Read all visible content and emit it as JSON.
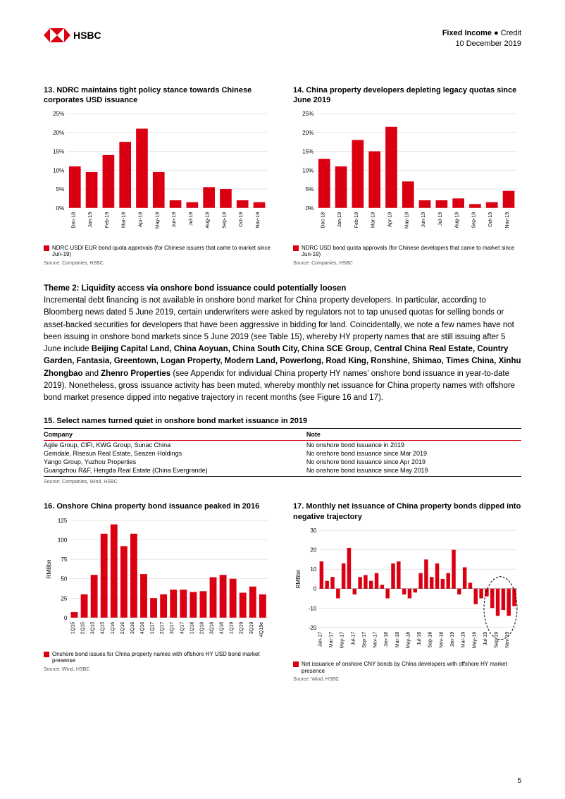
{
  "header": {
    "logo_text": "HSBC",
    "category_bold": "Fixed Income",
    "category_light": "Credit",
    "date": "10 December 2019"
  },
  "chart13": {
    "title": "13. NDRC maintains tight policy stance towards Chinese corporates USD issuance",
    "type": "bar",
    "categories": [
      "Dec-18",
      "Jan-19",
      "Feb-19",
      "Mar-19",
      "Apr-19",
      "May-19",
      "Jun-19",
      "Jul-19",
      "Aug-19",
      "Sep-19",
      "Oct-19",
      "Nov-19"
    ],
    "values": [
      11,
      9.5,
      14,
      17.5,
      21,
      9.5,
      2,
      1.5,
      5.5,
      5,
      2,
      1.5
    ],
    "ylim": [
      0,
      25
    ],
    "ytick_step": 5,
    "y_suffix": "%",
    "bar_color": "#db0011",
    "grid_color": "#cccccc",
    "background_color": "#ffffff",
    "legend": "NDRC USD/ EUR bond quota approvals (for Chinese issuers that came to market since Jun-19)",
    "source": "Source: Companies, HSBC"
  },
  "chart14": {
    "title": "14. China property developers depleting legacy quotas since June 2019",
    "type": "bar",
    "categories": [
      "Dec-18",
      "Jan-19",
      "Feb-19",
      "Mar-19",
      "Apr-19",
      "May-19",
      "Jun-19",
      "Jul-19",
      "Aug-19",
      "Sep-19",
      "Oct-19",
      "Nov-19"
    ],
    "values": [
      13,
      11,
      18,
      15,
      21.5,
      7,
      2,
      2,
      2.5,
      1,
      1.5,
      4.5
    ],
    "ylim": [
      0,
      25
    ],
    "ytick_step": 5,
    "y_suffix": "%",
    "bar_color": "#db0011",
    "grid_color": "#cccccc",
    "background_color": "#ffffff",
    "legend": "NDRC USD bond quota approvals (for Chinese developers that came to market since Jun-19)",
    "source": "Source: Companies, HSBC"
  },
  "body": {
    "theme_title": "Theme 2: Liquidity access via onshore bond issuance could potentially loosen",
    "p1a": "Incremental debt financing is not available in onshore bond market for China property developers. In particular, according to Bloomberg news dated 5 June 2019, certain underwriters were asked by regulators not to tap unused quotas for selling bonds or asset-backed securities for developers that have been aggressive in bidding for land. Coincidentally, we note a few names have not been issuing in onshore bond markets since 5 June 2019 (see Table 15), whereby HY property names that are still issuing after 5 June include ",
    "bold_names": "Beijing Capital Land, China Aoyuan, China South City, China SCE Group, Central China Real Estate, Country Garden, Fantasia, Greentown, Logan Property, Modern Land, Powerlong, Road King, Ronshine, Shimao, Times China, Xinhu Zhongbao",
    "p1b": " and ",
    "bold_last": "Zhenro Properties",
    "p1c": " (see Appendix for individual China property HY names' onshore bond issuance in year-to-date 2019). Nonetheless, gross issuance activity has been muted, whereby monthly net issuance for China property names with offshore bond market presence dipped into negative trajectory in recent months (see Figure 16 and 17)."
  },
  "table15": {
    "title": "15. Select names turned quiet in onshore bond market issuance in 2019",
    "columns": [
      "Company",
      "Note"
    ],
    "rows": [
      [
        "Agile Group, CIFI, KWG Group, Sunac China",
        "No onshore bond issuance in 2019"
      ],
      [
        "Gemdale, Risesun Real Estate, Seazen Holdings",
        "No onshore bond issuance since Mar 2019"
      ],
      [
        "Yango Group, Yuzhou Properties",
        "No onshore bond issuance since Apr 2019"
      ],
      [
        "Guangzhou R&F, Hengda Real Estate (China Evergrande)",
        "No onshore bond issuance since May 2019"
      ]
    ],
    "source": "Source: Companies, Wind, HSBC"
  },
  "chart16": {
    "title": "16. Onshore China property bond issuance peaked in 2016",
    "type": "bar",
    "ylabel": "RMBbn",
    "categories": [
      "1Q15",
      "2Q15",
      "3Q15",
      "4Q15",
      "1Q16",
      "2Q16",
      "3Q16",
      "4Q16",
      "1Q17",
      "2Q17",
      "3Q17",
      "4Q17",
      "1Q18",
      "2Q18",
      "3Q18",
      "4Q18",
      "1Q19",
      "2Q19",
      "3Q19",
      "4Q19e"
    ],
    "values": [
      7,
      30,
      55,
      108,
      120,
      92,
      108,
      56,
      25,
      30,
      36,
      36,
      33,
      34,
      52,
      55,
      50,
      32,
      40,
      30
    ],
    "ylim": [
      0,
      125
    ],
    "ytick_step": 25,
    "bar_color": "#db0011",
    "grid_color": "#cccccc",
    "legend": "Onshore bond issues for China property names with offshore HY USD bond market presense",
    "source": "Source: Wind, HSBC"
  },
  "chart17": {
    "title": "17. Monthly net issuance of China property bonds dipped into negative trajectory",
    "type": "bar",
    "ylabel": "RMBbn",
    "categories": [
      "Jan-17",
      "",
      "Mar-17",
      "",
      "May-17",
      "",
      "Jul-17",
      "",
      "Sep-17",
      "",
      "Nov-17",
      "",
      "Jan-18",
      "",
      "Mar-18",
      "",
      "May-18",
      "",
      "Jul-18",
      "",
      "Sep-18",
      "",
      "Nov-18",
      "",
      "Jan-19",
      "",
      "Mar-19",
      "",
      "May-19",
      "",
      "Jul-19",
      "",
      "Sep-19",
      "",
      "Nov-19",
      ""
    ],
    "values": [
      14,
      4,
      6,
      -5,
      13,
      21,
      -3,
      6,
      7,
      4,
      8,
      2,
      -5,
      13,
      14,
      -3,
      -5,
      -2,
      8,
      15,
      6,
      13,
      5,
      8,
      20,
      -3,
      11,
      3,
      -8,
      -5,
      -4,
      -10,
      -14,
      -11,
      -14,
      -9
    ],
    "ylim": [
      -20,
      30
    ],
    "ytick_step": 10,
    "bar_color": "#db0011",
    "grid_color": "#cccccc",
    "legend": "Net issuance of onshore CNY bonds by China developers with offshore HY market presence",
    "source": "Source: Wind, HSBC",
    "annotation_ellipse": {
      "x_start": 31,
      "x_end": 36
    }
  },
  "page_number": "5",
  "colors": {
    "hsbc_red": "#db0011",
    "text": "#000000",
    "grid": "#cccccc"
  }
}
